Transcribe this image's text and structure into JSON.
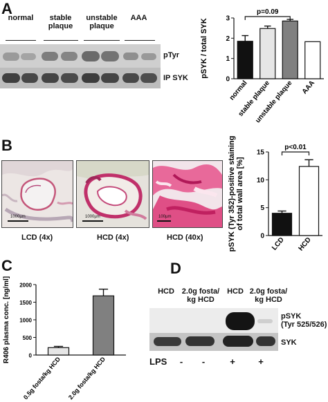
{
  "panelA": {
    "letter": "A",
    "groups": [
      {
        "label": "normal"
      },
      {
        "label": "stable\nplaque"
      },
      {
        "label": "unstable\nplaque"
      },
      {
        "label": "AAA"
      }
    ],
    "band_labels": [
      "pTyr",
      "IP SYK"
    ]
  },
  "panelB": {
    "letter": "B",
    "images": [
      {
        "caption": "LCD (4x)",
        "scale": "1000µm"
      },
      {
        "caption": "HCD (4x)",
        "scale": "1000µm"
      },
      {
        "caption": "HCD (40x)",
        "scale": "100µm"
      }
    ]
  },
  "panelC": {
    "letter": "C"
  },
  "panelD": {
    "letter": "D",
    "columns": [
      "HCD",
      "2.0g fosta/\nkg HCD",
      "HCD",
      "2.0g fosta/\nkg HCD"
    ],
    "band_labels": [
      "pSYK\n(Tyr 525/526)",
      "SYK"
    ],
    "lps_label": "LPS",
    "lps_values": [
      "-",
      "-",
      "+",
      "+"
    ]
  },
  "colors": {
    "black": "#111111",
    "light_gray": "#e6e6e6",
    "mid_gray": "#808080",
    "white": "#ffffff"
  },
  "chart_data": [
    {
      "id": "A",
      "type": "bar",
      "categories": [
        "normal",
        "stable plaque",
        "unstable plaque",
        "AAA"
      ],
      "values": [
        1.85,
        2.48,
        2.85,
        1.83
      ],
      "errors": [
        0.28,
        0.12,
        0.08,
        0
      ],
      "colors": [
        "#111111",
        "#e6e6e6",
        "#808080",
        "#ffffff"
      ],
      "ylabel": "pSYK / total SYK",
      "ylim": [
        0,
        3
      ],
      "yticks": [
        0,
        1,
        2,
        3
      ],
      "annotation": {
        "text": "p=0.09",
        "from": 0,
        "to": 2
      }
    },
    {
      "id": "B",
      "type": "bar",
      "categories": [
        "LCD",
        "HCD"
      ],
      "values": [
        4.0,
        12.4
      ],
      "errors": [
        0.4,
        1.2
      ],
      "colors": [
        "#111111",
        "#ffffff"
      ],
      "ylabel": "pSYK (Tyr 352)-positive staining\nof total wall area [%]",
      "ylim": [
        0,
        15
      ],
      "yticks": [
        0,
        5,
        10,
        15
      ],
      "annotation": {
        "text": "p<0.01",
        "from": 0,
        "to": 1
      }
    },
    {
      "id": "C",
      "type": "bar",
      "categories": [
        "0.5g fosta/kg HCD",
        "2.0g fosta/kg HCD"
      ],
      "values": [
        210,
        1680
      ],
      "errors": [
        35,
        190
      ],
      "colors": [
        "#e6e6e6",
        "#808080"
      ],
      "ylabel": "R406 plasma conc. [ng/ml]",
      "ylim": [
        0,
        2000
      ],
      "yticks": [
        0,
        500,
        1000,
        1500,
        2000
      ]
    }
  ]
}
